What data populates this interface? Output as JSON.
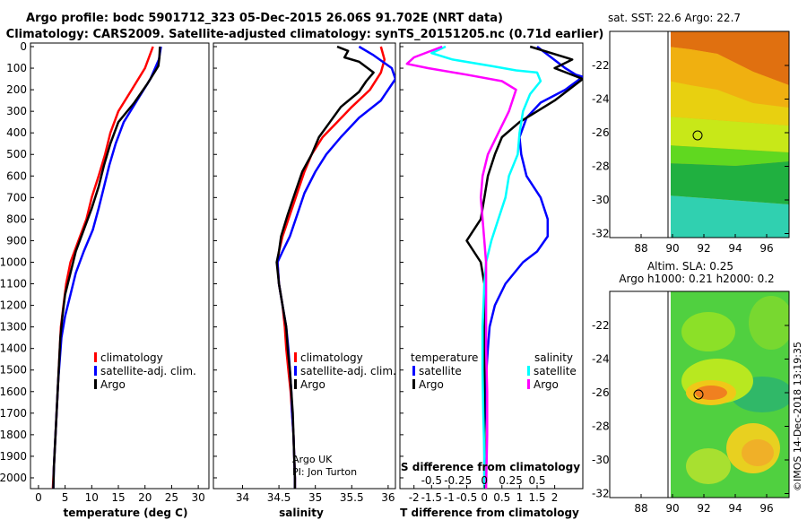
{
  "header": {
    "line1": "Argo profile: bodc 5901712_323 05-Dec-2015 26.06S 91.702E (NRT data)",
    "line2": "Climatology: CARS2009. Satellite-adjusted climatology: synTS_20151205.nc (0.71d earlier)"
  },
  "depth_ticks": [
    "0",
    "100",
    "200",
    "300",
    "400",
    "500",
    "600",
    "700",
    "800",
    "900",
    "1000",
    "1100",
    "1200",
    "1300",
    "1400",
    "1500",
    "1600",
    "1700",
    "1800",
    "1900",
    "2000"
  ],
  "colors": {
    "climatology": "#ff0000",
    "satellite": "#0000ff",
    "argo": "#000000",
    "sat_s": "#00ffff",
    "clim_s": "#ff00ff"
  },
  "chart_data": [
    {
      "type": "line",
      "xlabel": "temperature (deg C)",
      "xticks": [
        "0",
        "5",
        "10",
        "15",
        "20",
        "25",
        "30"
      ],
      "xlim": [
        -1.5,
        32
      ],
      "ylim": [
        2050,
        0
      ],
      "legend": [
        "climatology",
        "satellite-adj. clim.",
        "Argo"
      ],
      "series": [
        {
          "name": "climatology",
          "color": "#ff0000",
          "points": [
            [
              21.5,
              0
            ],
            [
              20,
              100
            ],
            [
              17.5,
              200
            ],
            [
              15,
              300
            ],
            [
              13.5,
              400
            ],
            [
              12.5,
              500
            ],
            [
              11.3,
              600
            ],
            [
              10,
              700
            ],
            [
              9,
              800
            ],
            [
              7.5,
              900
            ],
            [
              6,
              1000
            ],
            [
              5.2,
              1100
            ],
            [
              4.7,
              1200
            ],
            [
              4.2,
              1300
            ],
            [
              4,
              1400
            ],
            [
              3.8,
              1500
            ],
            [
              3.6,
              1600
            ],
            [
              3.4,
              1700
            ],
            [
              3.2,
              1800
            ],
            [
              3,
              1900
            ],
            [
              2.8,
              2000
            ],
            [
              2.7,
              2050
            ]
          ]
        },
        {
          "name": "satellite-adj. clim.",
          "color": "#0000ff",
          "points": [
            [
              23,
              0
            ],
            [
              22.6,
              60
            ],
            [
              21,
              150
            ],
            [
              18.5,
              250
            ],
            [
              16,
              350
            ],
            [
              14.5,
              450
            ],
            [
              13.3,
              550
            ],
            [
              12.3,
              650
            ],
            [
              11.3,
              750
            ],
            [
              10.2,
              850
            ],
            [
              8.5,
              950
            ],
            [
              7,
              1050
            ],
            [
              6,
              1150
            ],
            [
              5,
              1250
            ],
            [
              4.3,
              1350
            ],
            [
              4,
              1450
            ],
            [
              3.7,
              1550
            ],
            [
              3.5,
              1650
            ],
            [
              3.3,
              1750
            ],
            [
              3.1,
              1850
            ],
            [
              2.9,
              1950
            ],
            [
              2.8,
              2050
            ]
          ]
        },
        {
          "name": "Argo",
          "color": "#000000",
          "points": [
            [
              22.8,
              0
            ],
            [
              22.7,
              50
            ],
            [
              22.5,
              90
            ],
            [
              20.5,
              170
            ],
            [
              18,
              260
            ],
            [
              15,
              350
            ],
            [
              13.5,
              450
            ],
            [
              12.3,
              550
            ],
            [
              11.3,
              650
            ],
            [
              10,
              750
            ],
            [
              8.5,
              850
            ],
            [
              7,
              950
            ],
            [
              6,
              1050
            ],
            [
              5,
              1150
            ],
            [
              4.5,
              1250
            ],
            [
              4.1,
              1350
            ],
            [
              3.9,
              1450
            ],
            [
              3.7,
              1550
            ],
            [
              3.5,
              1650
            ],
            [
              3.3,
              1750
            ],
            [
              3.1,
              1850
            ],
            [
              2.9,
              1950
            ],
            [
              2.8,
              2050
            ]
          ]
        }
      ]
    },
    {
      "type": "line",
      "xlabel": "salinity",
      "xticks": [
        "34",
        "34.5",
        "35",
        "35.5",
        "36"
      ],
      "xlim": [
        33.6,
        36.1
      ],
      "ylim": [
        2050,
        0
      ],
      "legend": [
        "climatology",
        "satellite-adj. clim.",
        "Argo"
      ],
      "annotation": [
        "Argo UK",
        "PI: Jon Turton"
      ],
      "series": [
        {
          "name": "climatology",
          "color": "#ff0000",
          "points": [
            [
              35.9,
              0
            ],
            [
              35.95,
              60
            ],
            [
              35.9,
              120
            ],
            [
              35.75,
              200
            ],
            [
              35.5,
              280
            ],
            [
              35.3,
              350
            ],
            [
              35.1,
              420
            ],
            [
              34.95,
              500
            ],
            [
              34.85,
              580
            ],
            [
              34.75,
              680
            ],
            [
              34.65,
              780
            ],
            [
              34.55,
              880
            ],
            [
              34.5,
              950
            ],
            [
              34.48,
              1000
            ],
            [
              34.5,
              1100
            ],
            [
              34.55,
              1200
            ],
            [
              34.58,
              1300
            ],
            [
              34.6,
              1400
            ],
            [
              34.63,
              1500
            ],
            [
              34.66,
              1600
            ],
            [
              34.68,
              1700
            ],
            [
              34.7,
              1800
            ],
            [
              34.71,
              1900
            ],
            [
              34.72,
              2000
            ],
            [
              34.72,
              2050
            ]
          ]
        },
        {
          "name": "satellite-adj. clim.",
          "color": "#0000ff",
          "points": [
            [
              35.6,
              0
            ],
            [
              35.8,
              40
            ],
            [
              36.05,
              100
            ],
            [
              36.1,
              150
            ],
            [
              35.9,
              250
            ],
            [
              35.6,
              330
            ],
            [
              35.35,
              420
            ],
            [
              35.15,
              500
            ],
            [
              35.0,
              580
            ],
            [
              34.85,
              680
            ],
            [
              34.75,
              780
            ],
            [
              34.65,
              880
            ],
            [
              34.55,
              950
            ],
            [
              34.48,
              1000
            ],
            [
              34.5,
              1100
            ],
            [
              34.55,
              1200
            ],
            [
              34.6,
              1300
            ],
            [
              34.63,
              1400
            ],
            [
              34.65,
              1500
            ],
            [
              34.67,
              1600
            ],
            [
              34.68,
              1700
            ],
            [
              34.7,
              1800
            ],
            [
              34.71,
              1900
            ],
            [
              34.72,
              2000
            ],
            [
              34.72,
              2050
            ]
          ]
        },
        {
          "name": "Argo",
          "color": "#000000",
          "points": [
            [
              35.3,
              0
            ],
            [
              35.45,
              20
            ],
            [
              35.4,
              50
            ],
            [
              35.6,
              70
            ],
            [
              35.8,
              120
            ],
            [
              35.7,
              160
            ],
            [
              35.6,
              210
            ],
            [
              35.35,
              280
            ],
            [
              35.2,
              350
            ],
            [
              35.05,
              420
            ],
            [
              34.95,
              500
            ],
            [
              34.82,
              580
            ],
            [
              34.72,
              680
            ],
            [
              34.62,
              780
            ],
            [
              34.53,
              880
            ],
            [
              34.5,
              950
            ],
            [
              34.47,
              1000
            ],
            [
              34.5,
              1100
            ],
            [
              34.55,
              1200
            ],
            [
              34.6,
              1300
            ],
            [
              34.62,
              1400
            ],
            [
              34.65,
              1500
            ],
            [
              34.67,
              1600
            ],
            [
              34.69,
              1700
            ],
            [
              34.7,
              1800
            ],
            [
              34.71,
              1900
            ],
            [
              34.72,
              2000
            ],
            [
              34.72,
              2050
            ]
          ]
        }
      ]
    },
    {
      "type": "line",
      "xlabel": "T difference from climatology",
      "xticks": [
        "-2",
        "-1.5",
        "-1",
        "-0.5",
        "0",
        "0.5",
        "1",
        "1.5",
        "2"
      ],
      "xlim": [
        -2.4,
        2.8
      ],
      "ylim": [
        2050,
        0
      ],
      "top_label": "S difference from climatology",
      "top_ticks": [
        "-0.5",
        "-0.25",
        "0",
        "0.25",
        "0.5"
      ],
      "legend_left_title": "temperature",
      "legend_right_title": "salinity",
      "legend_left": [
        "satellite",
        "Argo"
      ],
      "legend_right": [
        "satellite",
        "Argo"
      ],
      "series": [
        {
          "name": "satellite",
          "color": "#0000ff",
          "points": [
            [
              1.5,
              0
            ],
            [
              1.9,
              50
            ],
            [
              2.3,
              100
            ],
            [
              2.6,
              130
            ],
            [
              2.8,
              140
            ],
            [
              2.3,
              200
            ],
            [
              1.6,
              260
            ],
            [
              1.2,
              330
            ],
            [
              1.0,
              420
            ],
            [
              1.05,
              500
            ],
            [
              1.2,
              600
            ],
            [
              1.6,
              700
            ],
            [
              1.8,
              800
            ],
            [
              1.8,
              880
            ],
            [
              1.5,
              950
            ],
            [
              1.1,
              1000
            ],
            [
              0.6,
              1100
            ],
            [
              0.3,
              1200
            ],
            [
              0.15,
              1300
            ],
            [
              0.1,
              1400
            ],
            [
              0.06,
              1500
            ],
            [
              0.04,
              1600
            ],
            [
              0.02,
              1700
            ],
            [
              0.0,
              1800
            ],
            [
              0.0,
              1900
            ],
            [
              0.0,
              2000
            ],
            [
              0.0,
              2050
            ]
          ]
        },
        {
          "name": "Argo",
          "color": "#000000",
          "points": [
            [
              1.3,
              0
            ],
            [
              2.1,
              40
            ],
            [
              2.5,
              60
            ],
            [
              2.0,
              100
            ],
            [
              2.8,
              150
            ],
            [
              2.0,
              250
            ],
            [
              1.0,
              350
            ],
            [
              0.5,
              420
            ],
            [
              0.3,
              500
            ],
            [
              0.1,
              600
            ],
            [
              0.0,
              700
            ],
            [
              -0.1,
              800
            ],
            [
              -0.5,
              900
            ],
            [
              -0.3,
              950
            ],
            [
              -0.1,
              1000
            ],
            [
              0.0,
              1100
            ],
            [
              0.0,
              1300
            ],
            [
              0.0,
              1600
            ],
            [
              0.0,
              2050
            ]
          ]
        },
        {
          "name": "sat S",
          "color": "#00ffff",
          "points": [
            [
              -1.1,
              0
            ],
            [
              -1.5,
              30
            ],
            [
              -0.9,
              60
            ],
            [
              0.2,
              90
            ],
            [
              0.9,
              110
            ],
            [
              1.5,
              120
            ],
            [
              1.6,
              160
            ],
            [
              1.3,
              220
            ],
            [
              1.1,
              300
            ],
            [
              1.0,
              400
            ],
            [
              0.95,
              500
            ],
            [
              0.7,
              600
            ],
            [
              0.6,
              700
            ],
            [
              0.4,
              800
            ],
            [
              0.2,
              900
            ],
            [
              0.05,
              1000
            ],
            [
              0.0,
              1100
            ],
            [
              -0.05,
              1300
            ],
            [
              -0.05,
              1500
            ],
            [
              -0.03,
              1700
            ],
            [
              0.0,
              1900
            ],
            [
              0.0,
              2050
            ]
          ]
        },
        {
          "name": "Argo S",
          "color": "#ff00ff",
          "points": [
            [
              -1.2,
              0
            ],
            [
              -2.0,
              50
            ],
            [
              -2.2,
              80
            ],
            [
              -1.6,
              100
            ],
            [
              -0.5,
              130
            ],
            [
              0.5,
              160
            ],
            [
              0.9,
              200
            ],
            [
              0.7,
              300
            ],
            [
              0.4,
              400
            ],
            [
              0.1,
              500
            ],
            [
              -0.05,
              600
            ],
            [
              -0.1,
              700
            ],
            [
              -0.05,
              800
            ],
            [
              0.05,
              1000
            ],
            [
              0.05,
              1200
            ],
            [
              0.05,
              1400
            ],
            [
              0.08,
              1600
            ],
            [
              0.08,
              1800
            ],
            [
              0.05,
              2050
            ]
          ]
        }
      ]
    }
  ],
  "maps": [
    {
      "title": "sat. SST: 22.6 Argo: 22.7",
      "xticks": [
        "88",
        "90",
        "92",
        "94",
        "96"
      ],
      "yticks": [
        "-22",
        "-24",
        "-26",
        "-28",
        "-30",
        "-32"
      ]
    },
    {
      "title_line1": "Altim. SLA: 0.25",
      "title_line2": "Argo h1000: 0.21 h2000: 0.2",
      "xticks": [
        "88",
        "90",
        "92",
        "94",
        "96"
      ],
      "yticks": [
        "-22",
        "-24",
        "-26",
        "-28",
        "-30",
        "-32"
      ]
    }
  ],
  "footer": "©IMOS 14-Dec-2018 13:19:35"
}
